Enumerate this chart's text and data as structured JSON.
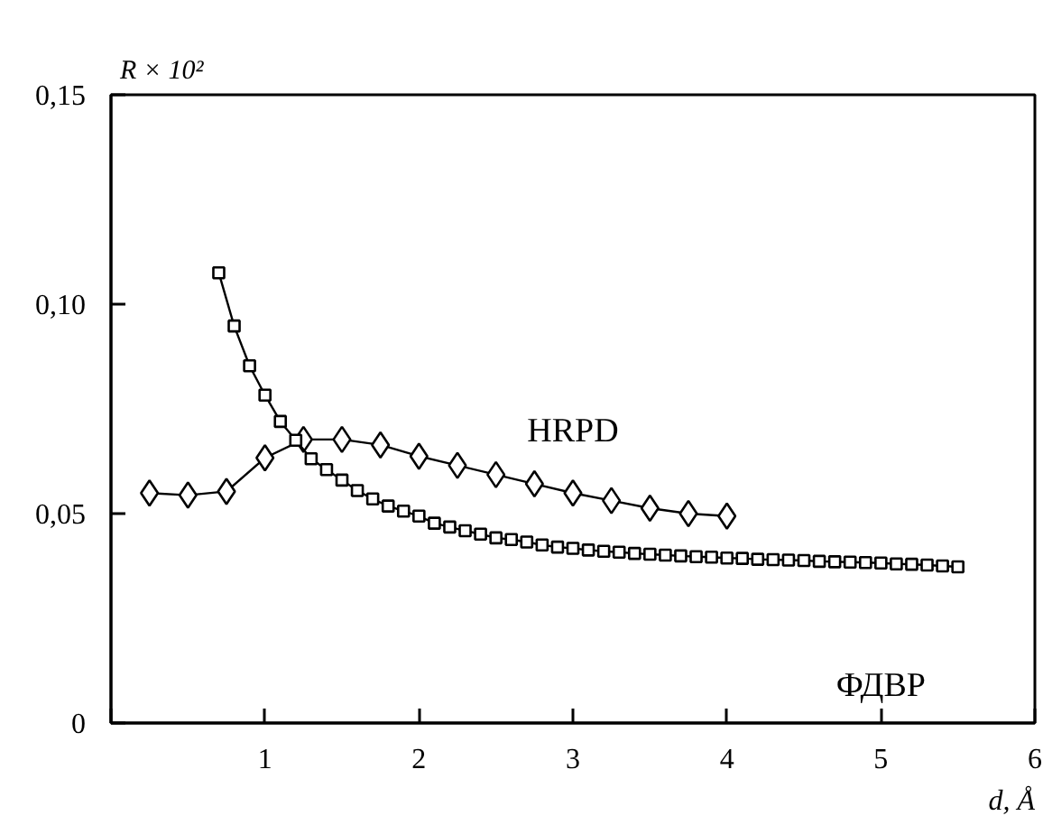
{
  "chart_data": {
    "type": "line",
    "xlabel": "d, Å",
    "ylabel": "R × 10²",
    "xlim": [
      0,
      6
    ],
    "ylim": [
      0,
      0.15
    ],
    "xticks": [
      {
        "value": 0,
        "label": null
      },
      1,
      2,
      3,
      4,
      5,
      6
    ],
    "yticks": [
      {
        "value": 0,
        "label": "0"
      },
      {
        "value": 0.05,
        "label": "0,05"
      },
      {
        "value": 0.1,
        "label": "0,10"
      },
      {
        "value": 0.15,
        "label": "0,15"
      }
    ],
    "grid": false,
    "line_style": "solid",
    "series": [
      {
        "name": "HRPD",
        "color": "#000000",
        "marker": "diamond",
        "x": [
          0.25,
          0.5,
          0.75,
          1.0,
          1.25,
          1.5,
          1.75,
          2.0,
          2.25,
          2.5,
          2.75,
          3.0,
          3.25,
          3.5,
          3.75,
          4.0
        ],
        "values": [
          0.0549,
          0.0544,
          0.0553,
          0.0633,
          0.0677,
          0.0677,
          0.0664,
          0.0637,
          0.0615,
          0.0593,
          0.0571,
          0.0549,
          0.0531,
          0.0513,
          0.05,
          0.0494
        ]
      },
      {
        "name": "ФДВР",
        "color": "#000000",
        "marker": "square",
        "x": [
          0.7,
          0.8,
          0.9,
          1.0,
          1.1,
          1.2,
          1.3,
          1.4,
          1.5,
          1.6,
          1.7,
          1.8,
          1.9,
          2.0,
          2.1,
          2.2,
          2.3,
          2.4,
          2.5,
          2.6,
          2.7,
          2.8,
          2.9,
          3.0,
          3.1,
          3.2,
          3.3,
          3.4,
          3.5,
          3.6,
          3.7,
          3.8,
          3.9,
          4.0,
          4.1,
          4.2,
          4.3,
          4.4,
          4.5,
          4.6,
          4.7,
          4.8,
          4.9,
          5.0,
          5.1,
          5.2,
          5.3,
          5.4,
          5.5
        ],
        "values": [
          0.1075,
          0.0948,
          0.0853,
          0.0783,
          0.072,
          0.0675,
          0.0631,
          0.0605,
          0.058,
          0.0555,
          0.0535,
          0.0518,
          0.0506,
          0.0494,
          0.0477,
          0.0468,
          0.0459,
          0.0451,
          0.0442,
          0.0438,
          0.0432,
          0.0425,
          0.042,
          0.0417,
          0.0413,
          0.041,
          0.0408,
          0.0405,
          0.0403,
          0.0401,
          0.0399,
          0.0397,
          0.0396,
          0.0394,
          0.0393,
          0.0391,
          0.039,
          0.0389,
          0.0388,
          0.0386,
          0.0385,
          0.0384,
          0.0383,
          0.0382,
          0.038,
          0.0379,
          0.0377,
          0.0375,
          0.0373
        ]
      }
    ]
  }
}
